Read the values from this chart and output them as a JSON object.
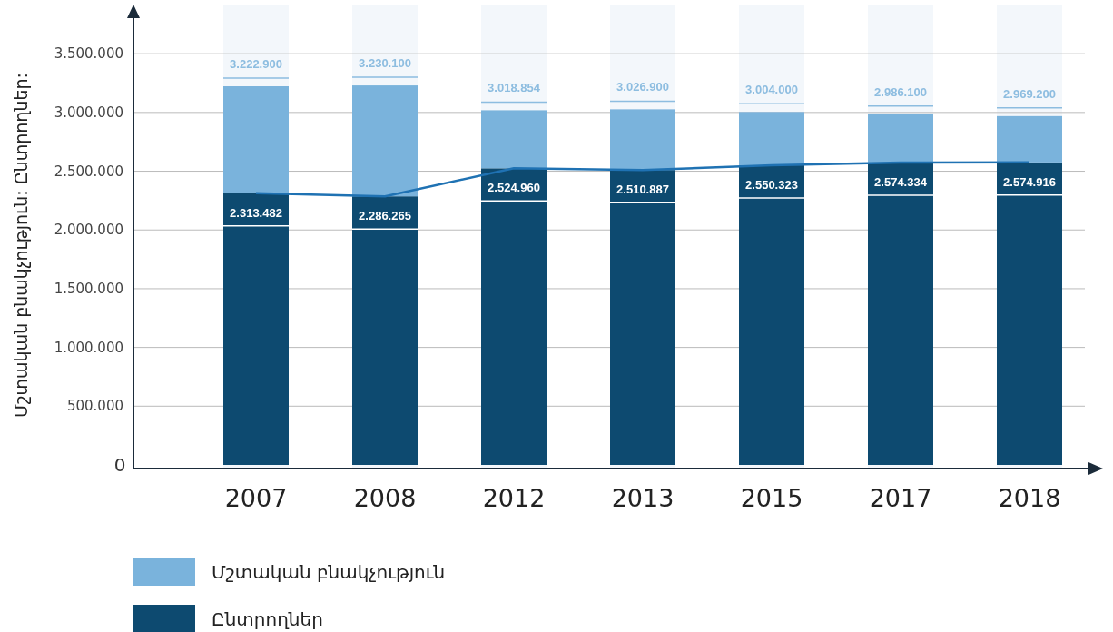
{
  "chart_data": {
    "type": "bar",
    "ylabel": "Մշտական բնակչություն: Ընտրողներ:",
    "categories": [
      "2007",
      "2008",
      "2012",
      "2013",
      "2015",
      "2017",
      "2018"
    ],
    "stacked": true,
    "series": [
      {
        "name": "Ընտրողներ",
        "color": "#0d4a70",
        "values": [
          2313482,
          2286265,
          2524960,
          2510887,
          2550323,
          2574334,
          2574916
        ],
        "value_labels": [
          "2.313.482",
          "2.286.265",
          "2.524.960",
          "2.510.887",
          "2.550.323",
          "2.574.334",
          "2.574.916"
        ]
      },
      {
        "name": "Մշտական բնակչություն",
        "color": "#7ab3dc",
        "values": [
          909418,
          943835,
          493894,
          516013,
          453677,
          411766,
          394284
        ]
      },
      {
        "type": "line",
        "color": "#1f72b3",
        "values": [
          2313482,
          2286265,
          2524960,
          2510887,
          2550323,
          2574334,
          2574916
        ]
      }
    ],
    "totals": [
      "3.222.900",
      "3.230.100",
      "3.018.854",
      "3.026.900",
      "3.004.000",
      "2.986.100",
      "2.969.200"
    ],
    "ylim": [
      0,
      3880000
    ],
    "yticks": [
      {
        "value": 0,
        "label": "0"
      },
      {
        "value": 500000,
        "label": "500.000"
      },
      {
        "value": 1000000,
        "label": "1.000.000"
      },
      {
        "value": 1500000,
        "label": "1.500.000"
      },
      {
        "value": 2000000,
        "label": "2.000.000"
      },
      {
        "value": 2500000,
        "label": "2.500.000"
      },
      {
        "value": 3000000,
        "label": "3.000.000"
      },
      {
        "value": 3500000,
        "label": "3.500.000"
      }
    ],
    "grid": "y",
    "legend": "bottom left"
  }
}
